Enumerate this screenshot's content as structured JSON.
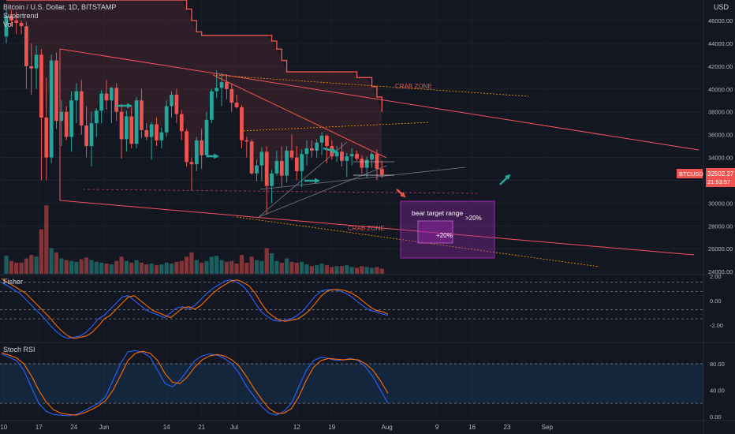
{
  "header": {
    "symbol_line": "Bitcoin / U.S. Dollar, 1D, BITSTAMP",
    "indicator_1": "Supertrend",
    "indicator_2": "Vol",
    "currency": "USD"
  },
  "price_tag": {
    "symbol": "BTCUSD",
    "price": "32502.27",
    "countdown": "21:53:57"
  },
  "annotations": {
    "crab_zone_upper": "CRAB ZONE",
    "crab_zone_lower": "CRAB ZONE",
    "bear_target": "bear target range",
    "pct_outer": ">20%",
    "pct_inner": "+20%"
  },
  "panes": {
    "fisher_label": "Fisher",
    "stoch_label": "Stoch RSI"
  },
  "colors": {
    "up": "#26a69a",
    "down": "#ef5350",
    "supertrend": "#ef5350",
    "fisher_a": "#2962ff",
    "fisher_b": "#ff6d00",
    "purple_box": "#9c27b0",
    "teal_arrow": "#26a69a"
  },
  "chart_data": [
    {
      "type": "candlestick",
      "x_ticks": [
        "10",
        "17",
        "24",
        "Jun",
        "14",
        "21",
        "Jul",
        "12",
        "19",
        "Aug",
        "9",
        "16",
        "23",
        "Sep"
      ],
      "y_ticks": [
        "46000.00",
        "44000.00",
        "42000.00",
        "40000.00",
        "38000.00",
        "36000.00",
        "34000.00",
        "32000.00",
        "30000.00",
        "28000.00",
        "26000.00",
        "24000.00"
      ],
      "ylim": [
        23800,
        47800
      ],
      "ohlc": [
        [
          44600,
          47000,
          44000,
          46400
        ],
        [
          46400,
          46900,
          45500,
          46000
        ],
        [
          46000,
          46800,
          44800,
          45800
        ],
        [
          45800,
          46000,
          44800,
          45500
        ],
        [
          45500,
          45900,
          40000,
          42000
        ],
        [
          42000,
          44000,
          39500,
          41800
        ],
        [
          41800,
          43800,
          40000,
          43000
        ],
        [
          43000,
          43500,
          32000,
          37500
        ],
        [
          37500,
          41000,
          32000,
          34000
        ],
        [
          34000,
          43000,
          33500,
          42500
        ],
        [
          42500,
          43200,
          36500,
          37200
        ],
        [
          37200,
          39000,
          35000,
          38000
        ],
        [
          38000,
          38500,
          35500,
          35800
        ],
        [
          35800,
          39800,
          34500,
          39000
        ],
        [
          39000,
          40500,
          37000,
          39800
        ],
        [
          39800,
          40800,
          36000,
          36800
        ],
        [
          36800,
          38500,
          34000,
          35000
        ],
        [
          35000,
          38000,
          33200,
          37000
        ],
        [
          37000,
          38300,
          35800,
          38100
        ],
        [
          38100,
          39900,
          37000,
          39600
        ],
        [
          39600,
          40800,
          38200,
          39000
        ],
        [
          39000,
          40200,
          37000,
          40100
        ],
        [
          40100,
          40500,
          37200,
          38000
        ],
        [
          38000,
          38700,
          33900,
          35600
        ],
        [
          35600,
          38100,
          34500,
          37600
        ],
        [
          37600,
          38500,
          34800,
          35200
        ],
        [
          35200,
          39300,
          34800,
          39000
        ],
        [
          39000,
          40000,
          35700,
          36400
        ],
        [
          36400,
          37000,
          35500,
          35800
        ],
        [
          35800,
          37100,
          33800,
          36900
        ],
        [
          36900,
          37500,
          35000,
          35500
        ],
        [
          35500,
          36600,
          34800,
          36200
        ],
        [
          36200,
          39000,
          35800,
          38500
        ],
        [
          38500,
          39800,
          37500,
          39500
        ],
        [
          39500,
          40000,
          37000,
          37800
        ],
        [
          37800,
          38200,
          35500,
          36300
        ],
        [
          36300,
          36500,
          33200,
          33600
        ],
        [
          33600,
          34000,
          31100,
          33400
        ],
        [
          33400,
          35800,
          32800,
          35500
        ],
        [
          35500,
          36500,
          33000,
          34200
        ],
        [
          34200,
          38000,
          34000,
          37300
        ],
        [
          37300,
          40000,
          37000,
          39800
        ],
        [
          39800,
          41600,
          39200,
          40100
        ],
        [
          40100,
          41400,
          38500,
          40600
        ],
        [
          40600,
          41300,
          39100,
          40000
        ],
        [
          40000,
          40500,
          38000,
          38800
        ],
        [
          38800,
          39500,
          38300,
          38400
        ],
        [
          38400,
          38600,
          34800,
          35500
        ],
        [
          35500,
          35800,
          34000,
          35400
        ],
        [
          35400,
          35600,
          32500,
          32600
        ],
        [
          32600,
          33800,
          31900,
          33300
        ],
        [
          33300,
          34900,
          31900,
          34500
        ],
        [
          34500,
          35000,
          29000,
          31500
        ],
        [
          31500,
          32900,
          30000,
          32600
        ],
        [
          32600,
          34600,
          32400,
          33700
        ],
        [
          33700,
          35000,
          31400,
          32400
        ],
        [
          32400,
          35000,
          31800,
          34600
        ],
        [
          34600,
          36000,
          33800,
          34000
        ],
        [
          34000,
          35000,
          32000,
          32800
        ],
        [
          32800,
          34700,
          31400,
          34300
        ],
        [
          34300,
          35500,
          33300,
          34800
        ],
        [
          34800,
          35500,
          34000,
          34600
        ],
        [
          34600,
          35600,
          34000,
          35300
        ],
        [
          35300,
          36200,
          34200,
          35900
        ],
        [
          35900,
          36000,
          33500,
          35000
        ],
        [
          35000,
          35500,
          33800,
          34100
        ],
        [
          34100,
          35000,
          33600,
          34500
        ],
        [
          34500,
          35300,
          33200,
          33700
        ],
        [
          33700,
          34400,
          32300,
          34100
        ],
        [
          34100,
          34800,
          33300,
          34300
        ],
        [
          34300,
          34600,
          33700,
          33900
        ],
        [
          33900,
          34200,
          32600,
          33100
        ],
        [
          33100,
          34100,
          32200,
          33800
        ],
        [
          33800,
          34500,
          33100,
          34300
        ],
        [
          34300,
          34700,
          32000,
          33000
        ],
        [
          33000,
          33700,
          32200,
          32500
        ]
      ],
      "volume": [
        2.1,
        1.5,
        1.3,
        1.3,
        1.8,
        2.2,
        2.0,
        5.2,
        8.0,
        3.0,
        2.5,
        1.8,
        1.6,
        1.5,
        1.4,
        1.7,
        1.9,
        1.6,
        1.4,
        1.3,
        1.2,
        1.1,
        1.5,
        2.0,
        1.5,
        1.3,
        1.6,
        1.3,
        1.1,
        1.2,
        1.0,
        1.1,
        1.3,
        1.2,
        1.4,
        1.5,
        2.0,
        2.5,
        1.6,
        1.3,
        1.5,
        2.0,
        2.1,
        1.6,
        1.4,
        1.5,
        1.2,
        2.2,
        1.3,
        2.0,
        1.6,
        1.5,
        3.0,
        2.4,
        1.5,
        1.3,
        1.8,
        1.4,
        1.3,
        1.4,
        1.1,
        0.9,
        1.0,
        1.2,
        1.0,
        0.8,
        0.9,
        0.9,
        1.0,
        0.8,
        0.7,
        0.9,
        0.8,
        0.7,
        0.8,
        0.6
      ],
      "supertrend": [
        47800,
        47800,
        47800,
        47800,
        47800,
        47800,
        47800,
        47800,
        47800,
        47800,
        47800,
        47800,
        47800,
        47800,
        47800,
        47800,
        47800,
        47800,
        47800,
        47800,
        47800,
        47800,
        47800,
        47800,
        47800,
        47800,
        47800,
        47800,
        47800,
        47800,
        47800,
        47800,
        47800,
        47800,
        47800,
        47800,
        47000,
        46000,
        45000,
        44700,
        44700,
        44700,
        44700,
        44700,
        44700,
        44700,
        44700,
        44700,
        44700,
        44700,
        44700,
        44700,
        44700,
        44200,
        43500,
        42500,
        41500,
        41500,
        41500,
        41500,
        41500,
        41500,
        41500,
        41500,
        41500,
        41500,
        41500,
        41500,
        41500,
        41500,
        41000,
        41000,
        41000,
        40200,
        39300,
        38000
      ]
    },
    {
      "type": "line",
      "title": "Fisher",
      "y_ticks": [
        "2.00",
        "0.00",
        "-2.00"
      ],
      "ylim": [
        -3.3,
        2.0
      ],
      "series": [
        {
          "values": [
            1.5,
            1.2,
            0.9,
            0.6,
            0.1,
            -0.4,
            -0.9,
            -1.4,
            -2.0,
            -2.5,
            -2.9,
            -3.1,
            -3.0,
            -2.9,
            -2.6,
            -2.1,
            -1.5,
            -1.2,
            -0.7,
            -0.2,
            0.3,
            0.4,
            0.0,
            -0.4,
            -0.8,
            -1.0,
            -1.2,
            -1.4,
            -1.0,
            -0.6,
            -0.5,
            -0.7,
            -0.4,
            0.1,
            0.6,
            1.0,
            1.3,
            1.6,
            1.7,
            1.5,
            1.2,
            0.6,
            -0.2,
            -0.9,
            -1.3,
            -1.6,
            -1.7,
            -1.6,
            -1.5,
            -1.2,
            -0.8,
            -0.2,
            0.4,
            0.8,
            0.9,
            0.9,
            0.8,
            0.6,
            0.3,
            -0.1,
            -0.5,
            -0.8,
            -0.9,
            -1.1,
            -1.2
          ]
        },
        {
          "values": [
            1.8,
            1.5,
            1.2,
            0.9,
            0.6,
            0.1,
            -0.4,
            -0.9,
            -1.4,
            -2.0,
            -2.5,
            -2.9,
            -3.1,
            -3.0,
            -2.9,
            -2.6,
            -2.1,
            -1.5,
            -1.2,
            -0.7,
            -0.2,
            0.3,
            0.4,
            0.0,
            -0.4,
            -0.8,
            -1.0,
            -1.2,
            -1.4,
            -1.0,
            -0.6,
            -0.5,
            -0.7,
            -0.4,
            0.1,
            0.6,
            1.0,
            1.3,
            1.6,
            1.7,
            1.5,
            1.2,
            0.6,
            -0.2,
            -0.9,
            -1.3,
            -1.6,
            -1.7,
            -1.6,
            -1.5,
            -1.2,
            -0.8,
            -0.2,
            0.4,
            0.8,
            0.9,
            0.9,
            0.8,
            0.6,
            0.3,
            -0.1,
            -0.5,
            -0.8,
            -0.9,
            -1.1
          ]
        }
      ]
    },
    {
      "type": "line",
      "title": "Stoch RSI",
      "y_ticks": [
        "80.00",
        "40.00",
        "0.00"
      ],
      "ylim": [
        -5,
        110
      ],
      "band": [
        20,
        80
      ],
      "series": [
        {
          "values": [
            95,
            90,
            85,
            70,
            45,
            20,
            8,
            3,
            2,
            1,
            3,
            8,
            14,
            20,
            30,
            55,
            80,
            98,
            100,
            97,
            90,
            70,
            50,
            45,
            55,
            70,
            85,
            92,
            95,
            93,
            88,
            80,
            65,
            45,
            30,
            15,
            5,
            2,
            8,
            20,
            45,
            70,
            85,
            90,
            88,
            85,
            86,
            88,
            85,
            75,
            60,
            40,
            20
          ]
        },
        {
          "values": [
            97,
            93,
            89,
            80,
            62,
            40,
            22,
            10,
            5,
            3,
            2,
            5,
            10,
            16,
            24,
            40,
            62,
            85,
            96,
            99,
            96,
            85,
            65,
            52,
            50,
            60,
            75,
            86,
            92,
            94,
            92,
            86,
            76,
            60,
            42,
            26,
            12,
            5,
            5,
            12,
            30,
            55,
            75,
            85,
            88,
            87,
            86,
            87,
            86,
            80,
            70,
            54,
            35
          ]
        }
      ]
    }
  ]
}
